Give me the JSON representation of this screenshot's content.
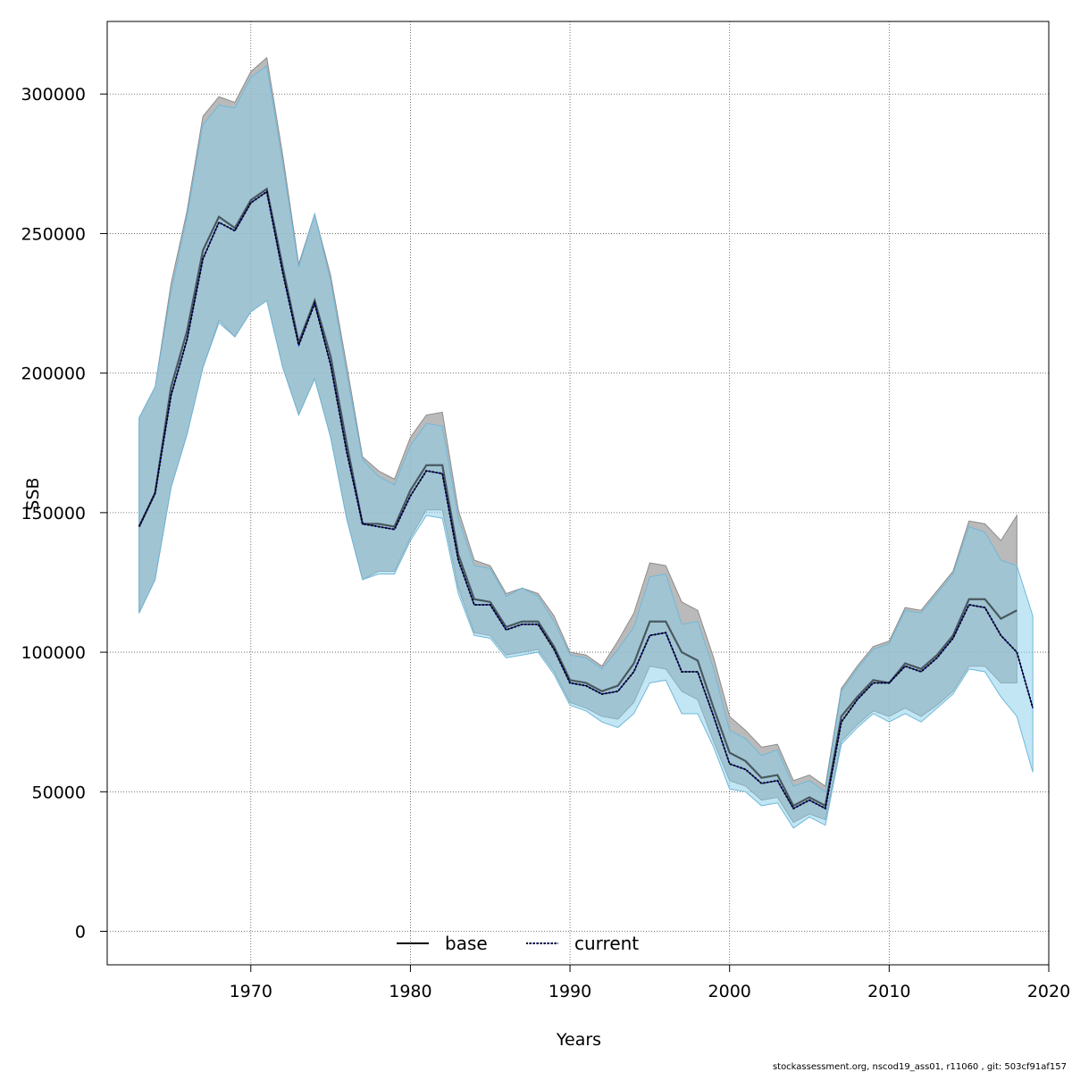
{
  "chart_data": {
    "type": "line",
    "xlabel": "Years",
    "ylabel": "SSB",
    "xlim": [
      1961,
      2020
    ],
    "ylim": [
      -12000,
      326000
    ],
    "x_ticks": [
      1970,
      1980,
      1990,
      2000,
      2010,
      2020
    ],
    "y_ticks": [
      0,
      50000,
      100000,
      150000,
      200000,
      250000,
      300000
    ],
    "x_tick_labels": [
      "1970",
      "1980",
      "1990",
      "2000",
      "2010",
      "2020"
    ],
    "y_tick_labels": [
      "0",
      "50000",
      "100000",
      "150000",
      "200000",
      "250000",
      "300000"
    ],
    "grid": true,
    "legend_position": "bottom",
    "colors": {
      "base_band": "#a6a6a6",
      "current_band": "#87ceeb",
      "base_line": "#000000",
      "current_line": "#00008b"
    },
    "series": [
      {
        "name": "base",
        "line_style": "solid",
        "x": [
          1963,
          1964,
          1965,
          1966,
          1967,
          1968,
          1969,
          1970,
          1971,
          1972,
          1973,
          1974,
          1975,
          1976,
          1977,
          1978,
          1979,
          1980,
          1981,
          1982,
          1983,
          1984,
          1985,
          1986,
          1987,
          1988,
          1989,
          1990,
          1991,
          1992,
          1993,
          1994,
          1995,
          1996,
          1997,
          1998,
          1999,
          2000,
          2001,
          2002,
          2003,
          2004,
          2005,
          2006,
          2007,
          2008,
          2009,
          2010,
          2011,
          2012,
          2013,
          2014,
          2015,
          2016,
          2017,
          2018
        ],
        "values": [
          145000,
          157000,
          195000,
          215000,
          244000,
          256000,
          252000,
          262000,
          266000,
          238000,
          211000,
          226000,
          206000,
          175000,
          146000,
          146000,
          145000,
          158000,
          167000,
          167000,
          135000,
          119000,
          118000,
          109000,
          111000,
          111000,
          102000,
          90000,
          89000,
          86000,
          88000,
          96000,
          111000,
          111000,
          100000,
          97000,
          80000,
          64000,
          61000,
          55000,
          56000,
          45000,
          48000,
          45000,
          77000,
          84000,
          90000,
          89000,
          96000,
          94000,
          99000,
          106000,
          119000,
          119000,
          112000,
          115000
        ],
        "lower": [
          114000,
          126000,
          159000,
          178000,
          202000,
          219000,
          213000,
          222000,
          226000,
          202000,
          185000,
          198000,
          177000,
          148000,
          126000,
          129000,
          129000,
          141000,
          151000,
          151000,
          123000,
          107000,
          106000,
          99000,
          100000,
          101000,
          93000,
          82000,
          80000,
          77000,
          76000,
          82000,
          95000,
          94000,
          86000,
          83000,
          68000,
          54000,
          52000,
          47000,
          48000,
          39000,
          42000,
          40000,
          68000,
          74000,
          79000,
          77000,
          80000,
          77000,
          81000,
          86000,
          95000,
          95000,
          89000,
          89000
        ],
        "upper": [
          184000,
          195000,
          232000,
          258000,
          292000,
          299000,
          297000,
          308000,
          313000,
          278000,
          239000,
          257000,
          235000,
          203000,
          170000,
          165000,
          162000,
          177000,
          185000,
          186000,
          151000,
          133000,
          131000,
          121000,
          123000,
          121000,
          113000,
          100000,
          99000,
          95000,
          104000,
          114000,
          132000,
          131000,
          118000,
          115000,
          98000,
          77000,
          72000,
          66000,
          67000,
          54000,
          56000,
          52000,
          87000,
          95000,
          102000,
          104000,
          116000,
          115000,
          122000,
          129000,
          147000,
          146000,
          140000,
          149000
        ]
      },
      {
        "name": "current",
        "line_style": "dotted",
        "x": [
          1963,
          1964,
          1965,
          1966,
          1967,
          1968,
          1969,
          1970,
          1971,
          1972,
          1973,
          1974,
          1975,
          1976,
          1977,
          1978,
          1979,
          1980,
          1981,
          1982,
          1983,
          1984,
          1985,
          1986,
          1987,
          1988,
          1989,
          1990,
          1991,
          1992,
          1993,
          1994,
          1995,
          1996,
          1997,
          1998,
          1999,
          2000,
          2001,
          2002,
          2003,
          2004,
          2005,
          2006,
          2007,
          2008,
          2009,
          2010,
          2011,
          2012,
          2013,
          2014,
          2015,
          2016,
          2017,
          2018,
          2019
        ],
        "values": [
          145000,
          157000,
          192000,
          212000,
          241000,
          254000,
          251000,
          261000,
          265000,
          236000,
          210000,
          225000,
          203000,
          172000,
          146000,
          145000,
          144000,
          156000,
          165000,
          164000,
          133000,
          117000,
          117000,
          108000,
          110000,
          110000,
          101000,
          89000,
          88000,
          85000,
          86000,
          93000,
          106000,
          107000,
          93000,
          93000,
          77000,
          60000,
          58000,
          53000,
          54000,
          44000,
          47000,
          44000,
          75000,
          83000,
          89000,
          89000,
          95000,
          93000,
          98000,
          105000,
          117000,
          116000,
          106000,
          100000,
          80000
        ],
        "lower": [
          114000,
          126000,
          159000,
          178000,
          202000,
          218000,
          213000,
          222000,
          226000,
          202000,
          185000,
          198000,
          177000,
          148000,
          126000,
          128000,
          128000,
          140000,
          149000,
          148000,
          121000,
          106000,
          105000,
          98000,
          99000,
          100000,
          92000,
          81000,
          79000,
          75000,
          73000,
          78000,
          89000,
          90000,
          78000,
          78000,
          66000,
          51000,
          50000,
          45000,
          46000,
          37000,
          41000,
          38000,
          67000,
          73000,
          78000,
          75000,
          78000,
          75000,
          80000,
          85000,
          94000,
          93000,
          84000,
          77000,
          57000
        ],
        "upper": [
          184000,
          195000,
          229000,
          256000,
          289000,
          296000,
          295000,
          306000,
          310000,
          275000,
          238000,
          257000,
          233000,
          200000,
          169000,
          163000,
          160000,
          174000,
          182000,
          181000,
          148000,
          131000,
          130000,
          120000,
          123000,
          120000,
          111000,
          99000,
          98000,
          94000,
          101000,
          109000,
          127000,
          128000,
          110000,
          111000,
          94000,
          72000,
          69000,
          63000,
          65000,
          52000,
          54000,
          50000,
          86000,
          94000,
          101000,
          103000,
          115000,
          114000,
          121000,
          128000,
          145000,
          143000,
          133000,
          131000,
          113000
        ]
      }
    ],
    "legend": [
      {
        "label": "base",
        "style": "solid"
      },
      {
        "label": "current",
        "style": "dotted"
      }
    ]
  },
  "footer_text": "stockassessment.org, nscod19_ass01, r11060 , git: 503cf91af157"
}
